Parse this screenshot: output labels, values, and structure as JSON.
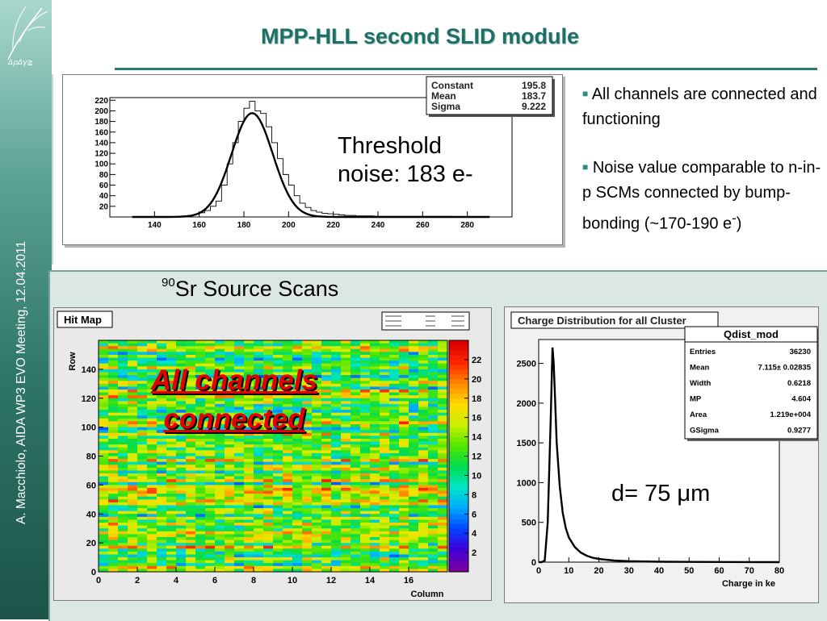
{
  "sidebar": {
    "logo_text": "ΔρΔγ≧",
    "vertical_text": "A. Macchiolo,  AIDA WP3 EVO Meeting, 12.04.2011"
  },
  "slide": {
    "title": "MPP-HLL second SLID module"
  },
  "bullets": [
    {
      "text": "All channels are connected and functioning"
    },
    {
      "text": "Noise value comparable to  n-in-p SCMs connected by bump-bonding (~170-190 e"
    }
  ],
  "bullet_superscript": "-",
  "bullet_close": ")",
  "noise_annotation": [
    "Threshold",
    "noise: 183 e-"
  ],
  "sr_section": {
    "superscript": "90",
    "text": "Sr Source  Scans"
  },
  "hitmap_annotation": [
    "All channels",
    "connected"
  ],
  "charge_annotation": "d= 75 μm",
  "colors": {
    "title": "#1f6f66",
    "accent": "#2b7d72",
    "annotation_red": "#e60000",
    "fit_curve": "#000000"
  },
  "chart_data": [
    {
      "type": "histogram",
      "title": "",
      "stats_box": [
        {
          "label": "Constant",
          "value": "195.8"
        },
        {
          "label": "Mean",
          "value": "183.7"
        },
        {
          "label": "Sigma",
          "value": "9.222"
        }
      ],
      "x_ticks": [
        "140",
        "160",
        "180",
        "200",
        "220",
        "240",
        "260",
        "280"
      ],
      "y_ticks": [
        "20",
        "40",
        "60",
        "80",
        "100",
        "120",
        "140",
        "160",
        "180",
        "200",
        "220"
      ],
      "xlim": [
        120,
        300
      ],
      "ylim": [
        0,
        225
      ],
      "bin_width": 2.5,
      "x": [
        150,
        152.5,
        155,
        157.5,
        160,
        162.5,
        165,
        167.5,
        170,
        172.5,
        175,
        177.5,
        180,
        182.5,
        185,
        187.5,
        190,
        192.5,
        195,
        197.5,
        200,
        202.5,
        205,
        207.5,
        210,
        212.5,
        215,
        217.5,
        220,
        222.5,
        225,
        227.5,
        230,
        232.5,
        235,
        240,
        245,
        250,
        255,
        260,
        265,
        270
      ],
      "values": [
        1,
        2,
        3,
        5,
        8,
        12,
        20,
        30,
        60,
        100,
        140,
        180,
        205,
        218,
        200,
        195,
        170,
        140,
        110,
        80,
        60,
        40,
        26,
        18,
        12,
        9,
        7,
        6,
        5,
        4,
        3,
        3,
        2,
        2,
        2,
        1,
        1,
        1,
        1,
        1,
        1,
        1
      ],
      "fit": {
        "type": "gaussian",
        "constant": 195.8,
        "mean": 183.7,
        "sigma": 9.222
      }
    },
    {
      "type": "heatmap",
      "title": "Hit Map",
      "xlabel": "Column",
      "ylabel": "Row",
      "x_ticks": [
        "0",
        "2",
        "4",
        "6",
        "8",
        "10",
        "12",
        "14",
        "16"
      ],
      "y_ticks": [
        "0",
        "20",
        "40",
        "60",
        "80",
        "100",
        "120",
        "140"
      ],
      "color_ticks": [
        "2",
        "4",
        "6",
        "8",
        "10",
        "12",
        "14",
        "16",
        "18",
        "20",
        "22"
      ],
      "xlim": [
        0,
        18
      ],
      "ylim": [
        0,
        160
      ],
      "zlim": [
        0,
        24
      ]
    },
    {
      "type": "line",
      "title": "Charge Distribution for all Cluster",
      "stats_title": "Qdist_mod",
      "stats_box": [
        {
          "label": "Entries",
          "value": "36230"
        },
        {
          "label": "Mean",
          "value": "7.115± 0.02835"
        },
        {
          "label": "Width",
          "value": "0.6218"
        },
        {
          "label": "MP",
          "value": "4.604"
        },
        {
          "label": "Area",
          "value": "1.219e+004"
        },
        {
          "label": "GSigma",
          "value": "0.9277"
        }
      ],
      "xlabel": "Charge in ke",
      "x_ticks": [
        "0",
        "10",
        "20",
        "30",
        "40",
        "50",
        "60",
        "70",
        "80"
      ],
      "y_ticks": [
        "0",
        "500",
        "1000",
        "1500",
        "2000",
        "2500"
      ],
      "xlim": [
        0,
        80
      ],
      "ylim": [
        0,
        2800
      ],
      "x": [
        0,
        1,
        2,
        3,
        4,
        4.6,
        5,
        5.5,
        6,
        7,
        8,
        9,
        10,
        12,
        14,
        16,
        18,
        20,
        25,
        30,
        40,
        50,
        60,
        70,
        80
      ],
      "values": [
        0,
        0,
        20,
        500,
        1800,
        2700,
        2500,
        2000,
        1500,
        950,
        620,
        430,
        310,
        190,
        120,
        80,
        55,
        40,
        20,
        12,
        5,
        3,
        2,
        1,
        0
      ]
    }
  ]
}
